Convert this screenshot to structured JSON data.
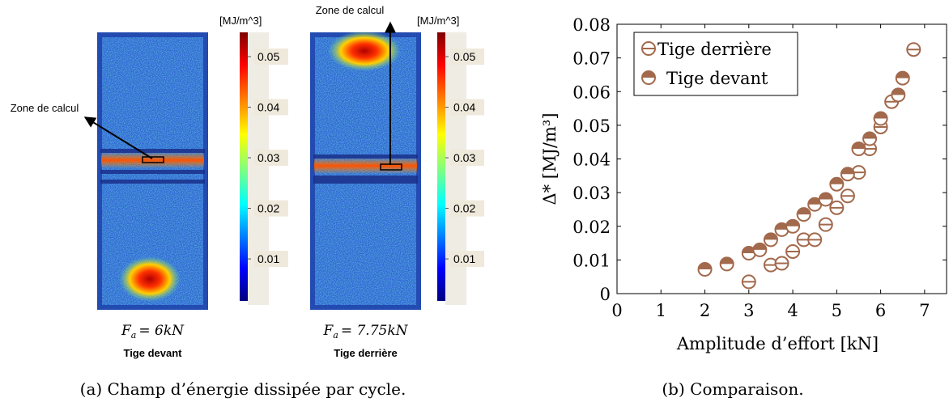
{
  "panel_a": {
    "caption": "(a) Champ d’énergie dissipée par cycle.",
    "colorbar_unit": "[MJ/m^3]",
    "colorbar_lim": [
      0.0017,
      0.0548
    ],
    "colorbar_ticks": [
      0.01,
      0.02,
      0.03,
      0.04,
      0.05
    ],
    "images": [
      {
        "annotation": "Zone de calcul",
        "force": {
          "symbol": "F",
          "subscript": "a",
          "value": "= 6kN"
        },
        "label": "Tige devant"
      },
      {
        "annotation": "Zone de calcul",
        "force": {
          "symbol": "F",
          "subscript": "a",
          "value": "= 7.75kN"
        },
        "label": "Tige derrière"
      }
    ]
  },
  "chart_data": {
    "type": "scatter",
    "caption": "(b) Comparaison.",
    "x_label": "Amplitude d’effort [kN]",
    "y_label": "Δ* [MJ/m³]",
    "xlim": [
      0,
      7.5
    ],
    "ylim": [
      0,
      0.08
    ],
    "xticks": [
      0,
      1,
      2,
      3,
      4,
      5,
      6,
      7
    ],
    "yticks": [
      0,
      0.01,
      0.02,
      0.03,
      0.04,
      0.05,
      0.06,
      0.07,
      0.08
    ],
    "legend": "upper left",
    "series": [
      {
        "name": "Tige derrière",
        "color": "#a2694c",
        "marker": "circle-bar",
        "x": [
          3.0,
          3.5,
          3.75,
          4.0,
          4.25,
          4.5,
          4.75,
          5.0,
          5.25,
          5.5,
          5.75,
          6.0,
          6.25,
          6.75
        ],
        "values": [
          0.0035,
          0.0085,
          0.009,
          0.0125,
          0.016,
          0.016,
          0.0205,
          0.0255,
          0.029,
          0.036,
          0.043,
          0.0495,
          0.057,
          0.0725
        ]
      },
      {
        "name": "Tige devant",
        "color": "#a2694c",
        "marker": "half-filled",
        "x": [
          2.0,
          2.5,
          3.0,
          3.25,
          3.5,
          3.75,
          4.0,
          4.25,
          4.5,
          4.75,
          5.0,
          5.25,
          5.5,
          5.75,
          6.0,
          6.4,
          6.5
        ],
        "values": [
          0.0072,
          0.0088,
          0.012,
          0.013,
          0.016,
          0.019,
          0.02,
          0.0235,
          0.0265,
          0.028,
          0.0325,
          0.0355,
          0.043,
          0.046,
          0.052,
          0.059,
          0.064
        ]
      }
    ]
  }
}
